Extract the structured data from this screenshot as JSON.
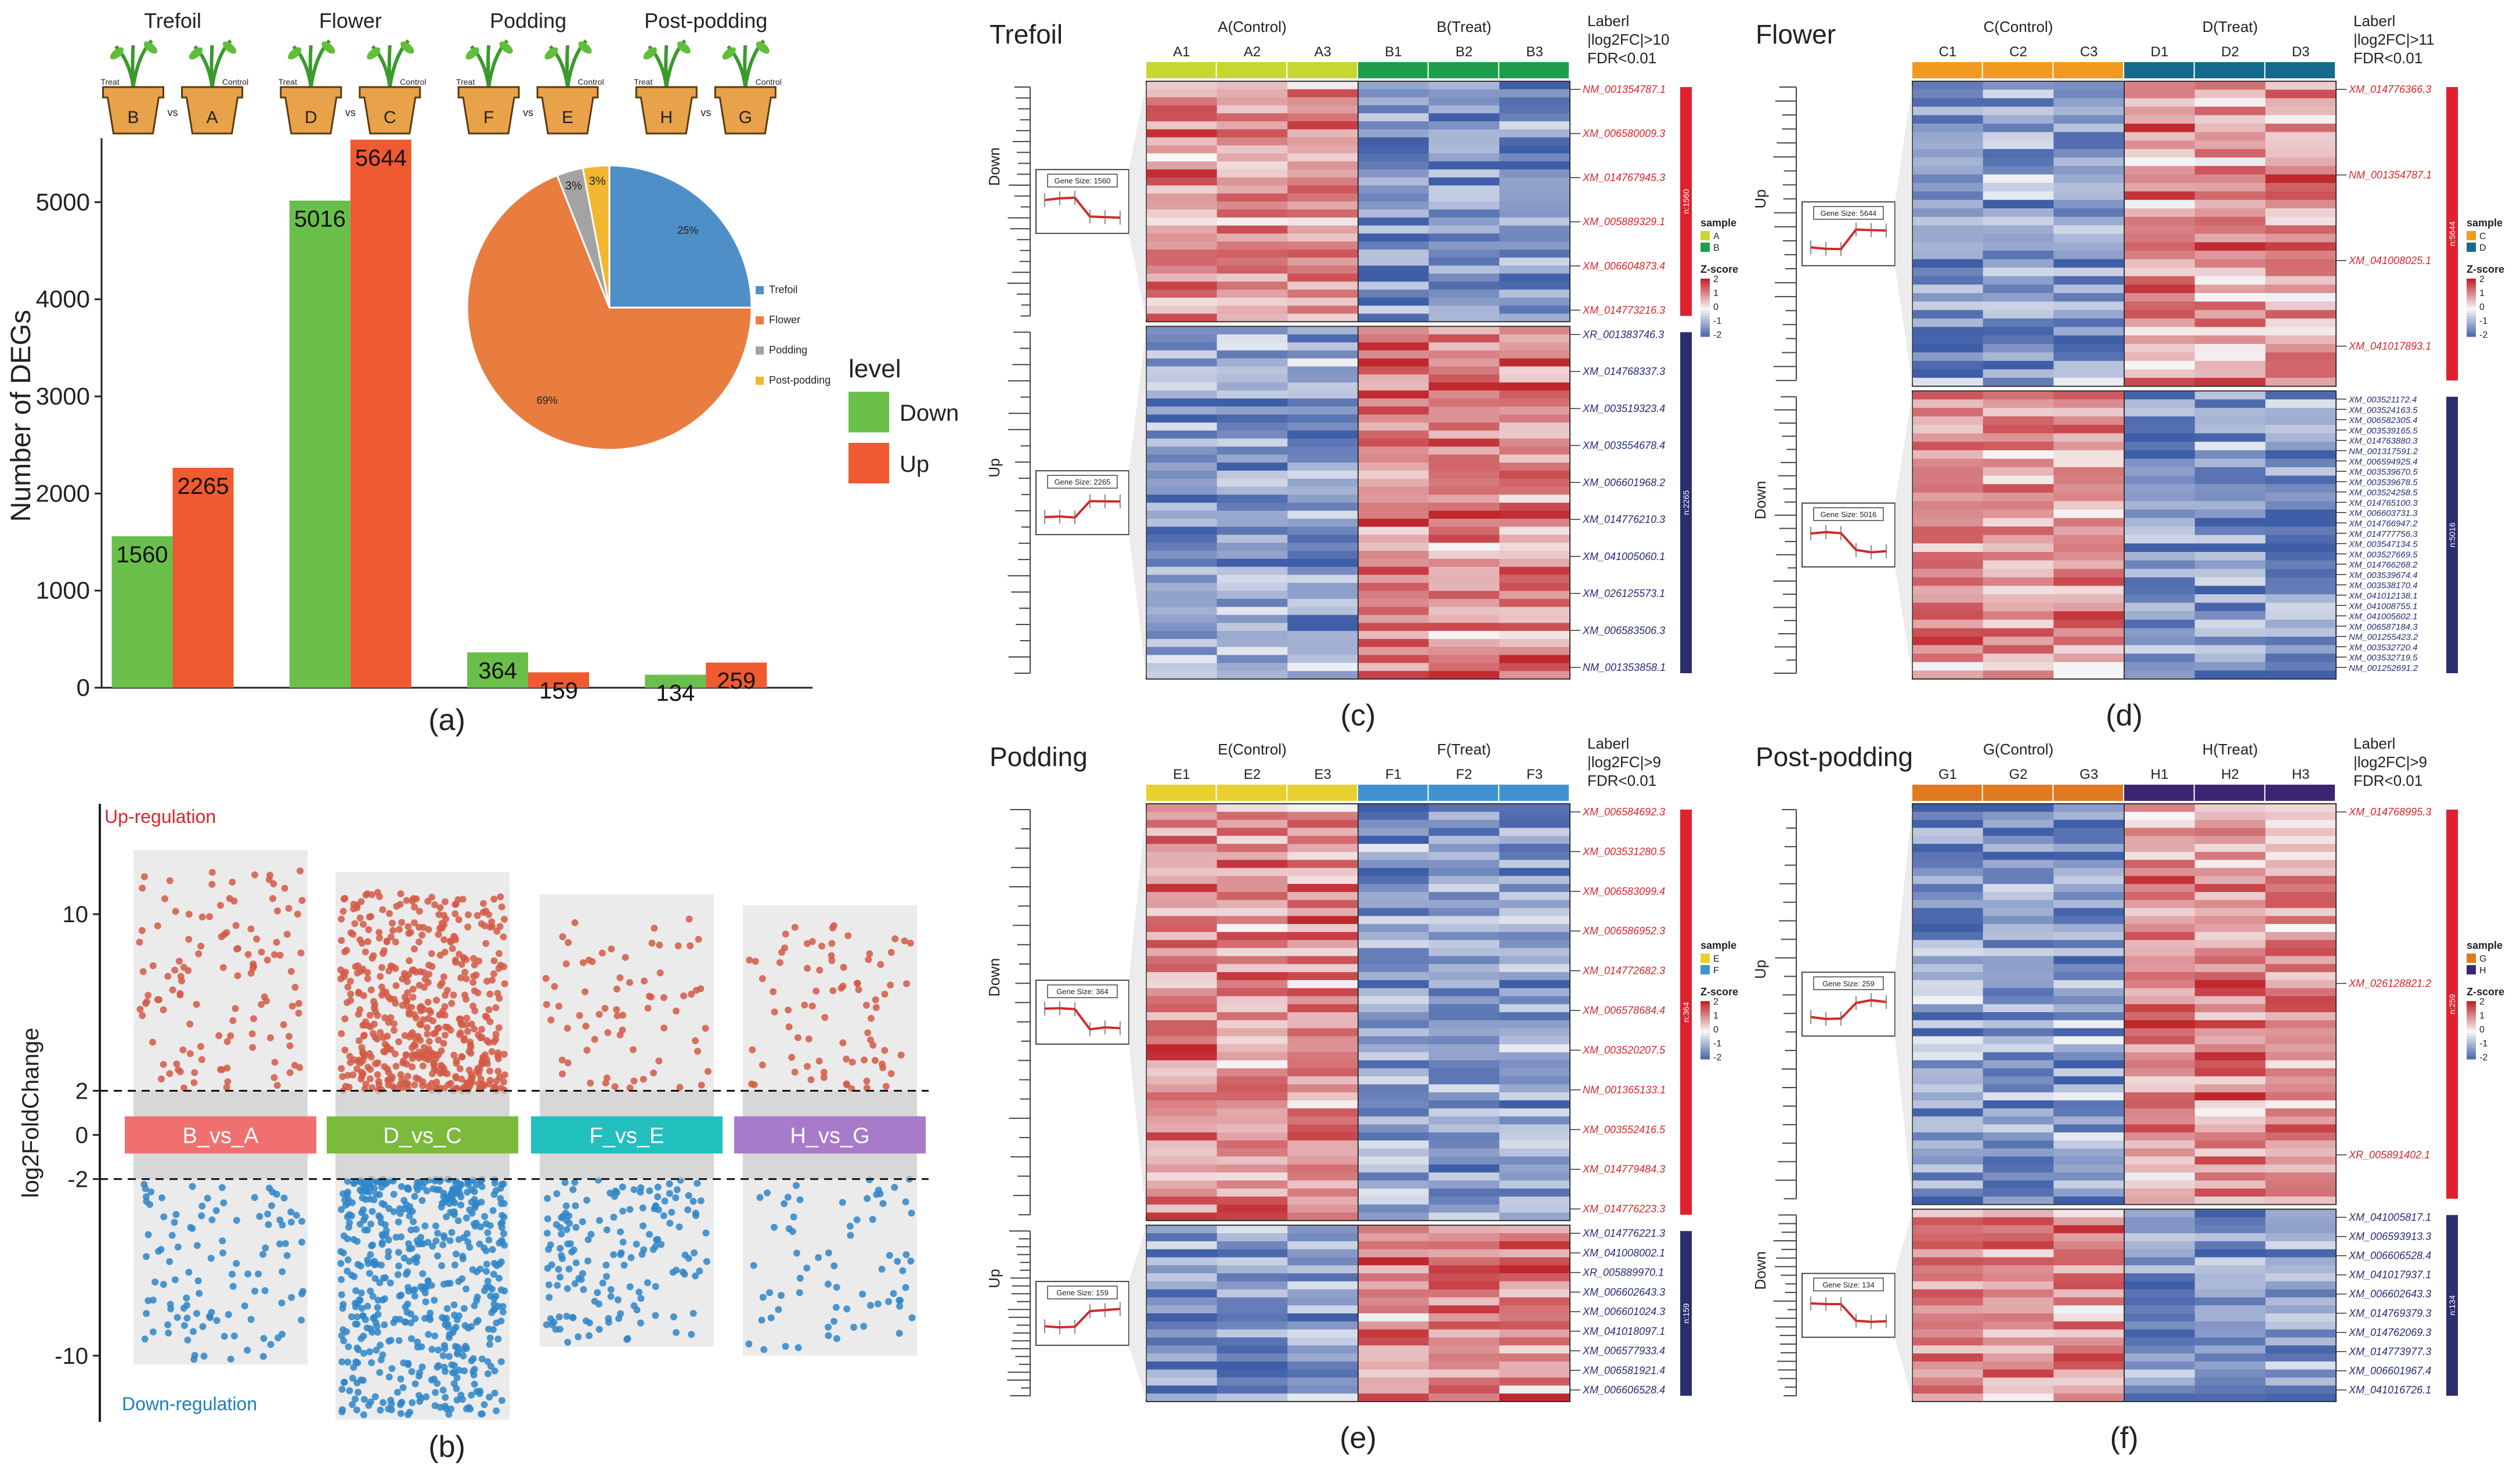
{
  "chart_data": [
    {
      "id": "a",
      "type": "bar",
      "panel_label": "(a)",
      "stages": [
        "Trefoil",
        "Flower",
        "Podding",
        "Post-podding"
      ],
      "pot_labels": [
        {
          "treat": "B",
          "control": "A"
        },
        {
          "treat": "D",
          "control": "C"
        },
        {
          "treat": "F",
          "control": "E"
        },
        {
          "treat": "H",
          "control": "G"
        }
      ],
      "pot_text": {
        "treat": "Treat",
        "control": "Control",
        "vs": "vs"
      },
      "ylabel": "Number of DEGs",
      "ylim": [
        0,
        5600
      ],
      "yticks": [
        "0",
        "1000",
        "2000",
        "3000",
        "4000",
        "5000"
      ],
      "series": [
        {
          "name": "Down",
          "color": "#6abf4b",
          "values": [
            1560,
            5016,
            364,
            134
          ]
        },
        {
          "name": "Up",
          "color": "#f05a30",
          "values": [
            2265,
            5644,
            159,
            259
          ]
        }
      ],
      "legend_title": "level",
      "legend": [
        "Down",
        "Up"
      ],
      "pie": {
        "labels": [
          "Trefoil",
          "Flower",
          "Podding",
          "Post-podding"
        ],
        "values": [
          25,
          69,
          3,
          3
        ],
        "pct_labels": [
          "25%",
          "69%",
          "3%",
          "3%"
        ],
        "colors": [
          "#4e8fc8",
          "#e87d3f",
          "#a3a3a3",
          "#f2b630"
        ]
      }
    },
    {
      "id": "b",
      "type": "scatter",
      "panel_label": "(b)",
      "ylabel": "log2FoldChange",
      "yticks": [
        "10",
        "2",
        "0",
        "-2",
        "-10"
      ],
      "ylim": [
        -13,
        15
      ],
      "threshold": [
        2,
        -2
      ],
      "up_label": "Up-regulation",
      "down_label": "Down-regulation",
      "groups": [
        {
          "name": "B_vs_A",
          "color": "#f07070",
          "up_count": 120,
          "down_count": 110,
          "up_max": 12,
          "down_min": -10.2
        },
        {
          "name": "D_vs_C",
          "color": "#7cba3b",
          "up_count": 520,
          "down_count": 560,
          "up_max": 11,
          "down_min": -12.7
        },
        {
          "name": "F_vs_E",
          "color": "#22bfbf",
          "up_count": 70,
          "down_count": 160,
          "up_max": 10,
          "down_min": -9.4
        },
        {
          "name": "H_vs_G",
          "color": "#a77bca",
          "up_count": 80,
          "down_count": 70,
          "up_max": 9.5,
          "down_min": -9.8
        }
      ]
    },
    {
      "id": "c",
      "type": "heatmap",
      "panel_label": "(c)",
      "stage": "Trefoil",
      "control_label": "A(Control)",
      "treat_label": "B(Treat)",
      "columns": [
        "A1",
        "A2",
        "A3",
        "B1",
        "B2",
        "B3"
      ],
      "group_colors": [
        "#c8d630",
        "#1e9e4a"
      ],
      "criteria": [
        "Laberl",
        "|log2FC|>10",
        "FDR<0.01"
      ],
      "blocks": [
        {
          "cluster": "Down",
          "n_label": "n:1560",
          "gene_size": "Gene Size: 1560",
          "color": "#e0202f",
          "rows": 30,
          "pattern": "hi-lo"
        },
        {
          "cluster": "Up",
          "n_label": "n:2265",
          "gene_size": "Gene Size: 2265",
          "color": "#2b2e6e",
          "rows": 44,
          "pattern": "lo-hi"
        }
      ],
      "labels_red": [
        "NM_001354787.1",
        "XM_006580009.3",
        "XM_014767945.3",
        "XM_005889329.1",
        "XM_006604873.4",
        "XM_014773216.3"
      ],
      "labels_blue": [
        "XR_001383746.3",
        "XM_014768337.3",
        "XM_003519323.4",
        "XM_003554678.4",
        "XM_006601968.2",
        "XM_014776210.3",
        "XM_041005060.1",
        "XM_026125573.1",
        "XM_006583506.3",
        "NM_001353858.1"
      ],
      "legend": {
        "sample_title": "sample",
        "sample_items": [
          "A",
          "B"
        ],
        "z_title": "Z-score",
        "z_ticks": [
          "2",
          "1",
          "0",
          "-1",
          "-2"
        ]
      }
    },
    {
      "id": "d",
      "type": "heatmap",
      "panel_label": "(d)",
      "stage": "Flower",
      "control_label": "C(Control)",
      "treat_label": "D(Treat)",
      "columns": [
        "C1",
        "C2",
        "C3",
        "D1",
        "D2",
        "D3"
      ],
      "group_colors": [
        "#f29a20",
        "#146b8e"
      ],
      "criteria": [
        "Laberl",
        "|log2FC|>11",
        "FDR<0.01"
      ],
      "blocks": [
        {
          "cluster": "Up",
          "n_label": "n:5644",
          "gene_size": "Gene Size: 5644",
          "color": "#e0202f",
          "rows": 36,
          "pattern": "lo-hi"
        },
        {
          "cluster": "Down",
          "n_label": "n:5016",
          "gene_size": "Gene Size: 5016",
          "color": "#2b2e6e",
          "rows": 34,
          "pattern": "hi-lo"
        }
      ],
      "labels_red": [
        "XM_014776366.3",
        "NM_001354787.1",
        "XM_041008025.1",
        "XM_041017893.1"
      ],
      "labels_blue": [
        "XM_003521172.4",
        "XM_003524163.5",
        "XM_006582305.4",
        "XM_003539165.5",
        "XM_014763880.3",
        "NM_001317591.2",
        "XM_006594925.4",
        "XM_003539670.5",
        "XM_003539678.5",
        "XM_003524258.5",
        "XM_014765100.3",
        "XM_006603731.3",
        "XM_014766947.2",
        "XM_014777756.3",
        "XM_003547134.5",
        "XM_003527669.5",
        "XM_014766268.2",
        "XM_003539674.4",
        "XM_003538170.4",
        "XM_041012138.1",
        "XM_041008755.1",
        "XM_041005602.1",
        "XM_006587184.3",
        "NM_001255423.2",
        "XM_003532720.4",
        "XM_003532719.5",
        "NM_001252691.2"
      ],
      "legend": {
        "sample_title": "sample",
        "sample_items": [
          "C",
          "D"
        ],
        "z_title": "Z-score",
        "z_ticks": [
          "2",
          "1",
          "0",
          "-1",
          "-2"
        ]
      }
    },
    {
      "id": "e",
      "type": "heatmap",
      "panel_label": "(e)",
      "stage": "Podding",
      "control_label": "E(Control)",
      "treat_label": "F(Treat)",
      "columns": [
        "E1",
        "E2",
        "E3",
        "F1",
        "F2",
        "F3"
      ],
      "group_colors": [
        "#e8d030",
        "#3f92cf"
      ],
      "criteria": [
        "Laberl",
        "|log2FC|>9",
        "FDR<0.01"
      ],
      "blocks": [
        {
          "cluster": "Down",
          "n_label": "n:364",
          "gene_size": "Gene Size: 364",
          "color": "#e0202f",
          "rows": 52,
          "pattern": "hi-lo"
        },
        {
          "cluster": "Up",
          "n_label": "n:159",
          "gene_size": "Gene Size: 159",
          "color": "#2b2e6e",
          "rows": 22,
          "pattern": "lo-hi"
        }
      ],
      "labels_red": [
        "XM_006584692.3",
        "XM_003531280.5",
        "XM_006583099.4",
        "XM_006586952.3",
        "XM_014772682.3",
        "XM_006578684.4",
        "XM_003520207.5",
        "NM_001365133.1",
        "XM_003552416.5",
        "XM_014779484.3",
        "XM_014776223.3"
      ],
      "labels_blue": [
        "XM_014776221.3",
        "XM_041008002.1",
        "XR_005889970.1",
        "XM_006602643.3",
        "XM_006601024.3",
        "XM_041018097.1",
        "XM_006577933.4",
        "XM_006581921.4",
        "XM_006606528.4"
      ],
      "legend": {
        "sample_title": "sample",
        "sample_items": [
          "E",
          "F"
        ],
        "z_title": "Z-score",
        "z_ticks": [
          "2",
          "1",
          "0",
          "-1",
          "-2"
        ]
      }
    },
    {
      "id": "f",
      "type": "heatmap",
      "panel_label": "(f)",
      "stage": "Post-podding",
      "control_label": "G(Control)",
      "treat_label": "H(Treat)",
      "columns": [
        "G1",
        "G2",
        "G3",
        "H1",
        "H2",
        "H3"
      ],
      "group_colors": [
        "#e07a20",
        "#3a2670"
      ],
      "criteria": [
        "Laberl",
        "|log2FC|>9",
        "FDR<0.01"
      ],
      "blocks": [
        {
          "cluster": "Up",
          "n_label": "n:259",
          "gene_size": "Gene Size: 259",
          "color": "#e0202f",
          "rows": 50,
          "pattern": "lo-hi"
        },
        {
          "cluster": "Down",
          "n_label": "n:134",
          "gene_size": "Gene Size: 134",
          "color": "#2b2e6e",
          "rows": 24,
          "pattern": "hi-lo"
        }
      ],
      "labels_red": [
        "XM_014768995.3",
        "XM_026128821.2",
        "XR_005891402.1"
      ],
      "labels_blue": [
        "XM_041005817.1",
        "XM_006593913.3",
        "XM_006606528.4",
        "XM_041017937.1",
        "XM_006602643.3",
        "XM_014769379.3",
        "XM_014762069.3",
        "XM_014773977.3",
        "XM_006601967.4",
        "XM_041016726.1"
      ],
      "legend": {
        "sample_title": "sample",
        "sample_items": [
          "G",
          "H"
        ],
        "z_title": "Z-score",
        "z_ticks": [
          "2",
          "1",
          "0",
          "-1",
          "-2"
        ]
      }
    }
  ]
}
